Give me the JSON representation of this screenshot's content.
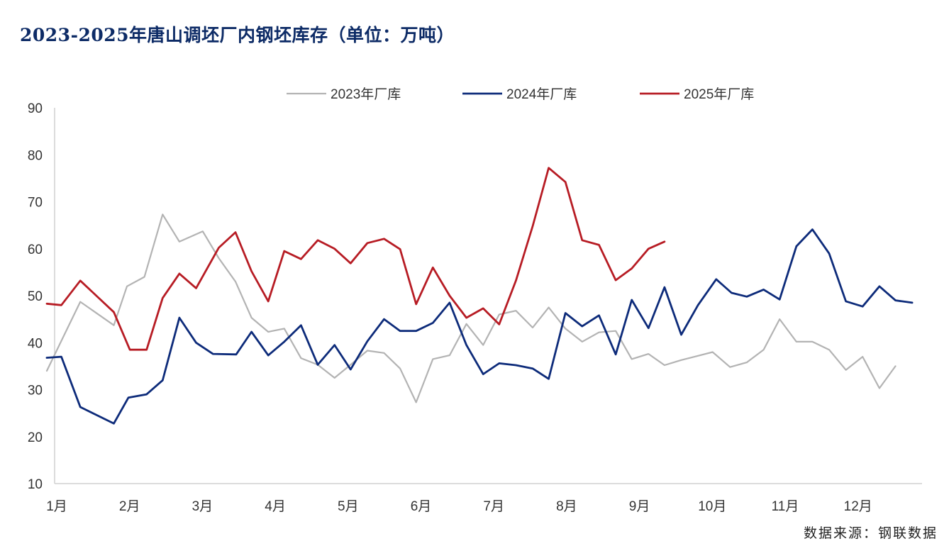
{
  "title": "2023-2025年唐山调坯厂内钢坯库存（单位：万吨）",
  "source": "数据来源：钢联数据",
  "chart_data": {
    "type": "line",
    "ylim": [
      10,
      90
    ],
    "yticks": [
      10,
      20,
      30,
      40,
      50,
      60,
      70,
      80,
      90
    ],
    "xlim": [
      1,
      13
    ],
    "months": [
      "1月",
      "2月",
      "3月",
      "4月",
      "5月",
      "6月",
      "7月",
      "8月",
      "9月",
      "10月",
      "11月",
      "12月"
    ],
    "grid": false,
    "legend_position": "top",
    "series": [
      {
        "name": "2023年厂库",
        "color": "#b3b3b3",
        "x": [
          1.0,
          1.46,
          1.92,
          2.1,
          2.34,
          2.59,
          2.82,
          3.14,
          3.36,
          3.59,
          3.81,
          4.04,
          4.26,
          4.49,
          4.72,
          4.95,
          5.17,
          5.4,
          5.63,
          5.85,
          6.07,
          6.3,
          6.53,
          6.76,
          6.99,
          7.21,
          7.44,
          7.67,
          7.89,
          8.12,
          8.35,
          8.58,
          8.81,
          9.03,
          9.26,
          9.48,
          9.71,
          9.94,
          10.14,
          10.38,
          10.61,
          10.84,
          11.06,
          11.29,
          11.51,
          11.74,
          11.97,
          12.2,
          12.43,
          12.65
        ],
        "values": [
          34,
          48.7,
          43.7,
          52,
          54,
          67.3,
          61.5,
          63.7,
          58,
          53,
          45.3,
          42.3,
          43,
          36.7,
          35.3,
          32.5,
          35.3,
          38.3,
          37.8,
          34.5,
          27.3,
          36.5,
          37.3,
          44,
          39.5,
          46,
          46.8,
          43.2,
          47.5,
          43,
          40.2,
          42.2,
          42.5,
          36.5,
          37.6,
          35.2,
          36.3,
          37.2,
          38,
          34.8,
          35.8,
          38.5,
          45,
          40.2,
          40.2,
          38.5,
          34.2,
          37,
          30.3,
          35
        ]
      },
      {
        "name": "2024年厂库",
        "color": "#0d2b7a",
        "x": [
          1.0,
          1.2,
          1.46,
          1.92,
          2.12,
          2.37,
          2.59,
          2.82,
          3.05,
          3.28,
          3.6,
          3.81,
          4.04,
          4.26,
          4.49,
          4.72,
          4.95,
          5.17,
          5.4,
          5.63,
          5.85,
          6.07,
          6.3,
          6.53,
          6.76,
          6.99,
          7.21,
          7.44,
          7.67,
          7.89,
          8.12,
          8.35,
          8.58,
          8.81,
          9.03,
          9.26,
          9.48,
          9.71,
          9.94,
          10.19,
          10.4,
          10.61,
          10.84,
          11.06,
          11.29,
          11.51,
          11.74,
          11.97,
          12.2,
          12.43,
          12.65,
          12.88
        ],
        "values": [
          36.8,
          37,
          26.3,
          22.8,
          28.3,
          29,
          32,
          45.3,
          40,
          37.6,
          37.5,
          42.3,
          37.3,
          40.2,
          43.7,
          35.3,
          39.5,
          34.3,
          40.3,
          45,
          42.5,
          42.5,
          44.2,
          48.5,
          39.5,
          33.3,
          35.6,
          35.2,
          34.5,
          32.3,
          46.3,
          43.5,
          45.8,
          37.5,
          49.1,
          43.1,
          51.8,
          41.7,
          48,
          53.5,
          50.6,
          49.8,
          51.3,
          49.2,
          60.5,
          64.1,
          59,
          48.8,
          47.7,
          52,
          49,
          48.5
        ]
      },
      {
        "name": "2025年厂库",
        "color": "#b71c24",
        "x": [
          1.0,
          1.2,
          1.46,
          1.7,
          1.92,
          2.14,
          2.37,
          2.59,
          2.82,
          3.05,
          3.36,
          3.59,
          3.81,
          4.04,
          4.26,
          4.49,
          4.72,
          4.95,
          5.17,
          5.4,
          5.63,
          5.85,
          6.07,
          6.3,
          6.53,
          6.76,
          6.99,
          7.21,
          7.44,
          7.67,
          7.89,
          8.12,
          8.35,
          8.58,
          8.81,
          9.03,
          9.26,
          9.48
        ],
        "values": [
          48.3,
          48,
          53.2,
          49.7,
          46.5,
          38.5,
          38.5,
          49.5,
          54.7,
          51.6,
          60.2,
          63.5,
          55.2,
          48.8,
          59.5,
          57.8,
          61.8,
          60,
          56.9,
          61.2,
          62.1,
          59.9,
          48.2,
          56,
          50,
          45.3,
          47.3,
          43.9,
          53.2,
          64.8,
          77.2,
          74.2,
          61.8,
          60.8,
          53.3,
          55.8,
          60,
          61.5
        ]
      }
    ]
  }
}
